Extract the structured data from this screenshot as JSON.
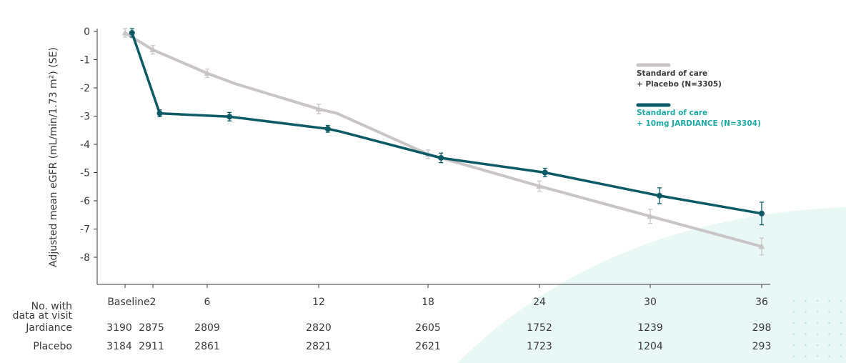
{
  "chart_data": {
    "type": "line",
    "ylabel": "Adjusted mean eGFR (mL/min/1.73 m²) (SE)",
    "ylim": [
      -9,
      0
    ],
    "y_ticks": [
      "0",
      "-1",
      "-2",
      "-3",
      "-4",
      "-5",
      "-6",
      "-7",
      "-8"
    ],
    "x_ticks": [
      "Baseline",
      "2",
      "6",
      "12",
      "18",
      "24",
      "30",
      "36"
    ],
    "grid": false,
    "legend_position": "right",
    "series": [
      {
        "name": "Standard of care\n+ Placebo (N=3305)",
        "color": "#c9c5c6",
        "marker": "triangle",
        "points": [
          {
            "x": 0,
            "y": -0.05,
            "se": 0.15
          },
          {
            "x": 2,
            "y": -0.65,
            "se": 0.15
          },
          {
            "x": 6,
            "y": -1.48,
            "se": 0.15
          },
          {
            "x": 7.5,
            "y": -1.85
          },
          {
            "x": 12,
            "y": -2.75,
            "se": 0.17
          },
          {
            "x": 13,
            "y": -2.9
          },
          {
            "x": 18,
            "y": -4.35,
            "se": 0.15
          },
          {
            "x": 24,
            "y": -5.48,
            "se": 0.18
          },
          {
            "x": 30,
            "y": -6.55,
            "se": 0.25
          },
          {
            "x": 36,
            "y": -7.62,
            "se": 0.3
          }
        ]
      },
      {
        "name": "Standard of care\n+ 10mg JARDIANCE (N=3304)",
        "color": "#0b5a66",
        "marker": "circle",
        "points": [
          {
            "x": 0.5,
            "y": -0.05,
            "se": 0.15
          },
          {
            "x": 2.5,
            "y": -2.9,
            "se": 0.12
          },
          {
            "x": 7.2,
            "y": -3.02,
            "se": 0.15
          },
          {
            "x": 12.5,
            "y": -3.45,
            "se": 0.12
          },
          {
            "x": 13.2,
            "y": -3.55
          },
          {
            "x": 18.7,
            "y": -4.48,
            "se": 0.17
          },
          {
            "x": 24.3,
            "y": -5.0,
            "se": 0.15
          },
          {
            "x": 30.5,
            "y": -5.82,
            "se": 0.28
          },
          {
            "x": 36,
            "y": -6.45,
            "se": 0.4
          }
        ]
      }
    ]
  },
  "legend": {
    "placebo_line1": "Standard of care",
    "placebo_line2": "+ Placebo (N=3305)",
    "jardiance_line1": "Standard of care",
    "jardiance_line2": "+ 10mg JARDIANCE (N=3304)"
  },
  "table": {
    "header_line1": "No. with",
    "header_line2": "data at visit",
    "rows": [
      {
        "label": "Jardiance",
        "values": [
          "3190",
          "2875",
          "2809",
          "2820",
          "2605",
          "1752",
          "1239",
          "298"
        ]
      },
      {
        "label": "Placebo",
        "values": [
          "3184",
          "2911",
          "2861",
          "2821",
          "2621",
          "1723",
          "1204",
          "293"
        ]
      }
    ]
  },
  "colors": {
    "placebo": "#c9c5c6",
    "jardiance": "#0b5a66",
    "jardiance_legend_text": "#1fa9a5",
    "placebo_legend_text": "#3a3a3a",
    "axis": "#3a3a3a",
    "decor": "#e6f6f4"
  }
}
